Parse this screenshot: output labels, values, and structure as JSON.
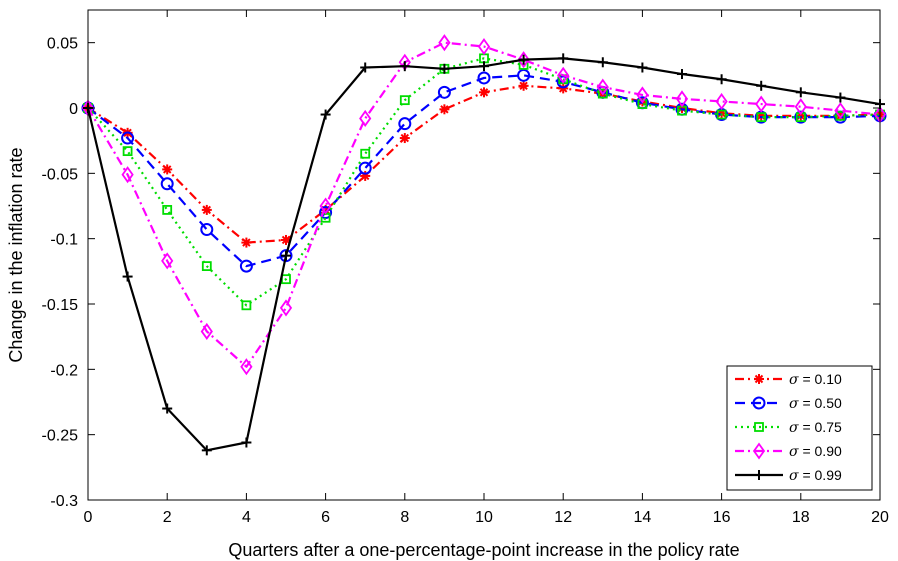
{
  "chart_data": {
    "type": "line",
    "xlabel": "Quarters after a one-percentage-point increase in the policy rate",
    "ylabel": "Change in the inflation rate",
    "xlim": [
      0,
      20
    ],
    "ylim": [
      -0.3,
      0.075
    ],
    "xticks": [
      0,
      2,
      4,
      6,
      8,
      10,
      12,
      14,
      16,
      18,
      20
    ],
    "xtick_labels": [
      "0",
      "2",
      "4",
      "6",
      "8",
      "10",
      "12",
      "14",
      "16",
      "18",
      "20"
    ],
    "yticks": [
      0.05,
      0,
      -0.05,
      -0.1,
      -0.15,
      -0.2,
      -0.25,
      -0.3
    ],
    "ytick_labels": [
      "0.05",
      "0",
      "-0.05",
      "-0.1",
      "-0.15",
      "-0.2",
      "-0.25",
      "-0.3"
    ],
    "grid": false,
    "legend_position": "bottom-right",
    "x": [
      0,
      1,
      2,
      3,
      4,
      5,
      6,
      7,
      8,
      9,
      10,
      11,
      12,
      13,
      14,
      15,
      16,
      17,
      18,
      19,
      20
    ],
    "series": [
      {
        "symbol": "σ",
        "label_value": " = 0.10",
        "color": "#ff0000",
        "line_style": "dashdot",
        "marker": "asterisk",
        "values": [
          0,
          -0.019,
          -0.047,
          -0.078,
          -0.103,
          -0.101,
          -0.078,
          -0.052,
          -0.023,
          -0.001,
          0.012,
          0.017,
          0.015,
          0.011,
          0.005,
          0.0,
          -0.004,
          -0.006,
          -0.006,
          -0.006,
          -0.005
        ]
      },
      {
        "symbol": "σ",
        "label_value": " = 0.50",
        "color": "#0000ff",
        "line_style": "dashed",
        "marker": "circle",
        "values": [
          0,
          -0.023,
          -0.058,
          -0.093,
          -0.121,
          -0.113,
          -0.08,
          -0.046,
          -0.012,
          0.012,
          0.023,
          0.025,
          0.02,
          0.012,
          0.004,
          -0.001,
          -0.005,
          -0.007,
          -0.007,
          -0.007,
          -0.006
        ]
      },
      {
        "symbol": "σ",
        "label_value": " = 0.75",
        "color": "#00dd00",
        "line_style": "dotted",
        "marker": "square",
        "values": [
          0,
          -0.033,
          -0.078,
          -0.121,
          -0.151,
          -0.131,
          -0.084,
          -0.035,
          0.006,
          0.03,
          0.038,
          0.033,
          0.022,
          0.011,
          0.003,
          -0.002,
          -0.005,
          -0.007,
          -0.007,
          -0.006,
          -0.005
        ]
      },
      {
        "symbol": "σ",
        "label_value": " = 0.90",
        "color": "#ff00ff",
        "line_style": "dashdot",
        "marker": "diamond",
        "values": [
          0,
          -0.051,
          -0.117,
          -0.171,
          -0.198,
          -0.153,
          -0.075,
          -0.008,
          0.035,
          0.05,
          0.047,
          0.037,
          0.025,
          0.016,
          0.01,
          0.007,
          0.005,
          0.003,
          0.001,
          -0.002,
          -0.005
        ]
      },
      {
        "symbol": "σ",
        "label_value": " = 0.99",
        "color": "#000000",
        "line_style": "solid",
        "marker": "plus",
        "values": [
          0,
          -0.129,
          -0.23,
          -0.262,
          -0.256,
          -0.113,
          -0.005,
          0.031,
          0.032,
          0.03,
          0.032,
          0.037,
          0.038,
          0.035,
          0.031,
          0.026,
          0.022,
          0.017,
          0.012,
          0.008,
          0.003
        ]
      }
    ]
  }
}
